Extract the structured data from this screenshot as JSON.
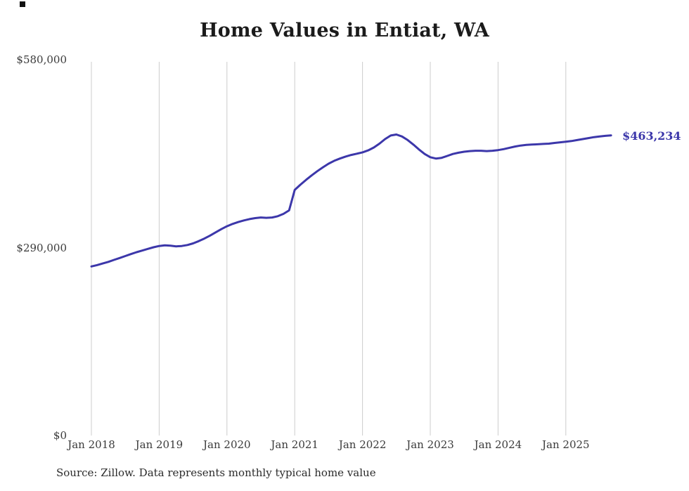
{
  "title": "Home Values in Entiat, WA",
  "source_note": "Source: Zillow. Data represents monthly typical home value",
  "colors": {
    "line": "#3c37aa",
    "grid": "#cccccc",
    "axis_text": "#3a3a3a",
    "title_text": "#1b1b1b"
  },
  "chart_data": {
    "type": "line",
    "title": "Home Values in Entiat, WA",
    "xlabel": "",
    "ylabel": "",
    "ylim": [
      0,
      580000
    ],
    "grid": "vertical-only",
    "legend_position": "none",
    "x_ticks": [
      "Jan 2018",
      "Jan 2019",
      "Jan 2020",
      "Jan 2021",
      "Jan 2022",
      "Jan 2023",
      "Jan 2024",
      "Jan 2025"
    ],
    "y_ticks": [
      {
        "value": 0,
        "label": "$0"
      },
      {
        "value": 290000,
        "label": "$290,000"
      },
      {
        "value": 580000,
        "label": "$580,000"
      }
    ],
    "last_value_label": "$463,234",
    "series": [
      {
        "name": "Typical home value",
        "frequency": "monthly",
        "start": "Jan 2018",
        "end": "Sep 2025",
        "values": [
          261000,
          263000,
          265500,
          268000,
          271000,
          274000,
          277000,
          280000,
          283000,
          285500,
          288000,
          290500,
          292500,
          293500,
          293000,
          292000,
          292500,
          294000,
          296500,
          300000,
          304000,
          308500,
          313500,
          318500,
          323000,
          326500,
          329500,
          332000,
          334000,
          335500,
          336500,
          336000,
          336500,
          338500,
          342000,
          347500,
          379000,
          387000,
          394500,
          401500,
          408000,
          414000,
          419500,
          424000,
          427500,
          430500,
          433000,
          435000,
          437000,
          440000,
          444500,
          450500,
          457500,
          463000,
          464500,
          461500,
          456000,
          449000,
          441500,
          434500,
          429500,
          427500,
          428500,
          431500,
          434500,
          436500,
          438000,
          439000,
          439500,
          439500,
          439000,
          439500,
          440500,
          442000,
          444000,
          446000,
          447500,
          448500,
          449000,
          449500,
          450000,
          450500,
          451500,
          452500,
          453500,
          454500,
          456000,
          457500,
          459000,
          460500,
          461500,
          462500,
          463234
        ]
      }
    ]
  }
}
